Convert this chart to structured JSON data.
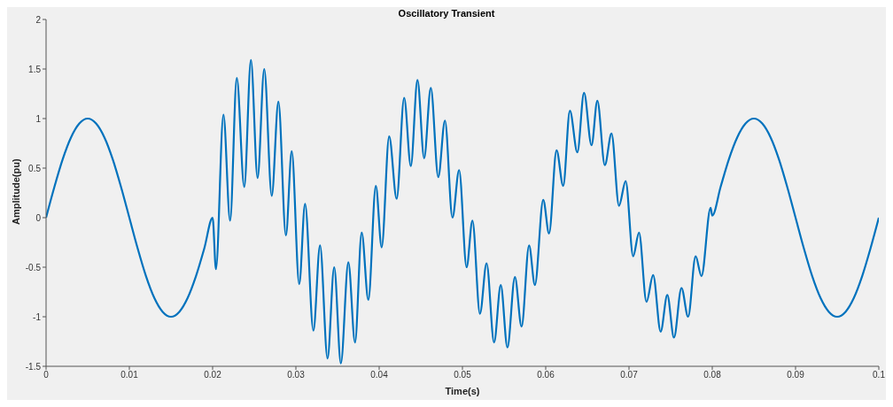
{
  "chart_data": {
    "type": "line",
    "title": "Oscillatory Transient",
    "xlabel": "Time(s)",
    "ylabel": "Amplitude(pu)",
    "xlim": [
      0,
      0.1
    ],
    "xticks": [
      0,
      0.01,
      0.02,
      0.03,
      0.04,
      0.05,
      0.06,
      0.07,
      0.08,
      0.09,
      0.1
    ],
    "ylim": [
      -1.5,
      2
    ],
    "yticks": [
      -1.5,
      -1,
      -0.5,
      0,
      0.5,
      1,
      1.5,
      2
    ],
    "grid": false,
    "legend": false,
    "marker": "none",
    "line_style": "solid",
    "series": [
      {
        "color": "#0072bd",
        "x": [
          0,
          0.001,
          0.002,
          0.003,
          0.004,
          0.005,
          0.006,
          0.007,
          0.008,
          0.009,
          0.01,
          0.011,
          0.012,
          0.013,
          0.014,
          0.015,
          0.016,
          0.017,
          0.018,
          0.019,
          0.02,
          0.0204,
          0.0213,
          0.0221,
          0.0229,
          0.0238,
          0.0246,
          0.0254,
          0.0262,
          0.0271,
          0.0279,
          0.0288,
          0.0295,
          0.0304,
          0.0311,
          0.0321,
          0.0329,
          0.0338,
          0.0346,
          0.0354,
          0.0363,
          0.0371,
          0.0379,
          0.0387,
          0.0396,
          0.0403,
          0.0412,
          0.0421,
          0.043,
          0.0438,
          0.0446,
          0.0454,
          0.0462,
          0.0471,
          0.0479,
          0.0488,
          0.0496,
          0.0505,
          0.0512,
          0.0521,
          0.0529,
          0.0538,
          0.0546,
          0.0554,
          0.0563,
          0.0571,
          0.058,
          0.0587,
          0.0597,
          0.0604,
          0.0613,
          0.0621,
          0.0629,
          0.0638,
          0.0646,
          0.0655,
          0.0662,
          0.0671,
          0.0679,
          0.0688,
          0.0696,
          0.0705,
          0.0712,
          0.0721,
          0.0729,
          0.0738,
          0.0746,
          0.0754,
          0.0763,
          0.0771,
          0.078,
          0.0787,
          0.0798,
          0.08,
          0.081,
          0.082,
          0.083,
          0.084,
          0.085,
          0.086,
          0.087,
          0.088,
          0.089,
          0.09,
          0.091,
          0.092,
          0.093,
          0.094,
          0.095,
          0.096,
          0.097,
          0.098,
          0.099,
          0.1
        ],
        "values": [
          0,
          0.31,
          0.59,
          0.81,
          0.95,
          1,
          0.95,
          0.81,
          0.59,
          0.31,
          0,
          -0.31,
          -0.59,
          -0.81,
          -0.95,
          -1,
          -0.95,
          -0.81,
          -0.59,
          -0.31,
          0,
          -0.52,
          1.04,
          -0.03,
          1.41,
          0.31,
          1.59,
          0.4,
          1.5,
          0.22,
          1.17,
          -0.18,
          0.67,
          -0.67,
          0.14,
          -1.14,
          -0.28,
          -1.42,
          -0.5,
          -1.47,
          -0.45,
          -1.26,
          -0.15,
          -0.83,
          0.32,
          -0.3,
          0.82,
          0.19,
          1.21,
          0.52,
          1.39,
          0.6,
          1.31,
          0.41,
          0.98,
          0,
          0.48,
          -0.5,
          -0.03,
          -0.97,
          -0.46,
          -1.26,
          -0.68,
          -1.31,
          -0.6,
          -1.1,
          -0.28,
          -0.68,
          0.18,
          -0.16,
          0.68,
          0.32,
          1.08,
          0.66,
          1.26,
          0.73,
          1.18,
          0.53,
          0.85,
          0.12,
          0.37,
          -0.39,
          -0.15,
          -0.85,
          -0.58,
          -1.15,
          -0.78,
          -1.21,
          -0.71,
          -1,
          -0.39,
          -0.59,
          0.1,
          0.02,
          0.31,
          0.59,
          0.81,
          0.95,
          1,
          0.95,
          0.81,
          0.59,
          0.31,
          0,
          -0.31,
          -0.59,
          -0.81,
          -0.95,
          -1,
          -0.95,
          -0.81,
          -0.59,
          -0.31,
          0
        ]
      }
    ]
  }
}
